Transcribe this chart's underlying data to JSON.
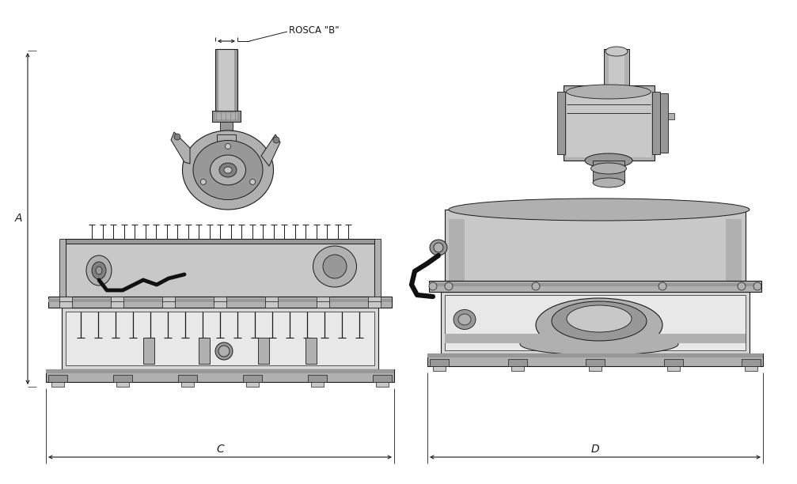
{
  "background_color": "#ffffff",
  "lc": "#1a1a1a",
  "c1": "#c8c8c8",
  "c2": "#b0b0b0",
  "c3": "#989898",
  "c4": "#808080",
  "c5": "#686868",
  "c6": "#d8d8d8",
  "c7": "#e8e8e8",
  "c_dark": "#404040",
  "rosca_label": "ROSCA \"B\"",
  "dim_A": "A",
  "dim_C": "C",
  "dim_D": "D",
  "fig_width": 10.07,
  "fig_height": 6.12,
  "ann_fs": 8.5,
  "lbl_fs": 10
}
